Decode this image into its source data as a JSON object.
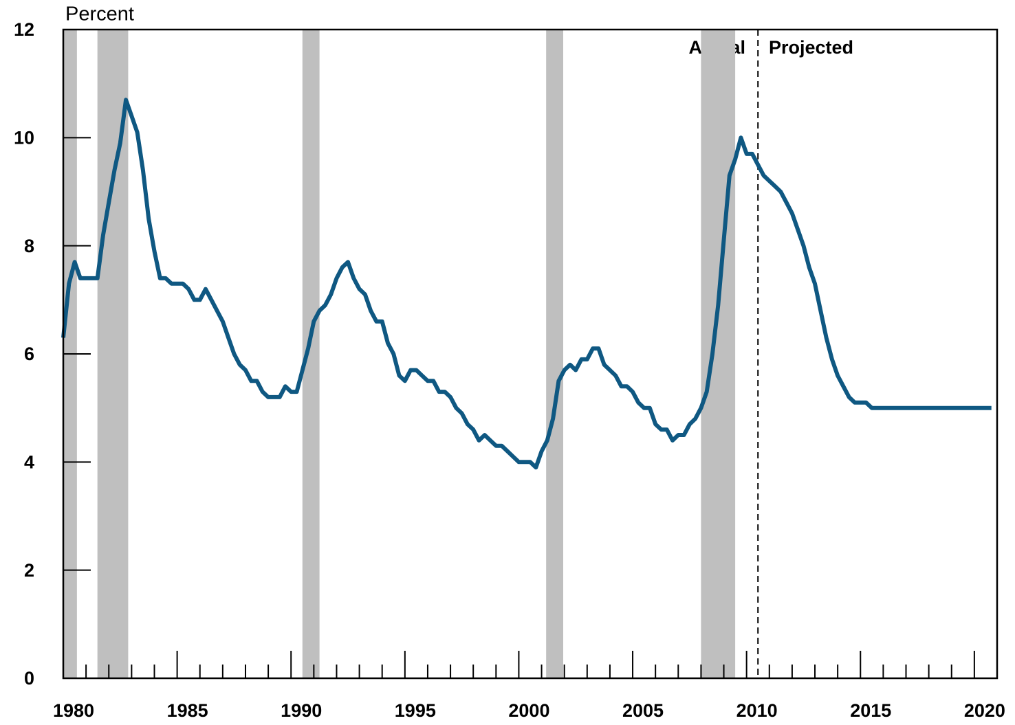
{
  "chart_data": {
    "type": "line",
    "y_axis_label": "Percent",
    "annotations": [
      "Actual",
      "Projected"
    ],
    "divider_x": 2010.5,
    "shaded_periods": [
      [
        1980,
        1980.6
      ],
      [
        1981.5,
        1982.85
      ],
      [
        1990.5,
        1991.25
      ],
      [
        2001.2,
        2001.95
      ],
      [
        2008,
        2009.5
      ]
    ],
    "shade_color": "#bfbfbf",
    "xlim": [
      1980,
      2021
    ],
    "xticks": [
      1980,
      1985,
      1990,
      1995,
      2000,
      2005,
      2010,
      2015,
      2020
    ],
    "xminorticks": [
      1981,
      1982,
      1983,
      1984,
      1986,
      1987,
      1988,
      1989,
      1991,
      1992,
      1993,
      1994,
      1996,
      1997,
      1998,
      1999,
      2001,
      2002,
      2003,
      2004,
      2006,
      2007,
      2008,
      2009,
      2011,
      2012,
      2013,
      2014,
      2016,
      2017,
      2018,
      2019
    ],
    "ylim": [
      0,
      12
    ],
    "yticks": [
      0,
      2,
      4,
      6,
      8,
      10,
      12
    ],
    "x": [
      1980,
      1980.25,
      1980.5,
      1980.75,
      1981,
      1981.25,
      1981.5,
      1981.75,
      1982,
      1982.25,
      1982.5,
      1982.75,
      1983,
      1983.25,
      1983.5,
      1983.75,
      1984,
      1984.25,
      1984.5,
      1984.75,
      1985,
      1985.25,
      1985.5,
      1985.75,
      1986,
      1986.25,
      1986.5,
      1986.75,
      1987,
      1987.25,
      1987.5,
      1987.75,
      1988,
      1988.25,
      1988.5,
      1988.75,
      1989,
      1989.25,
      1989.5,
      1989.75,
      1990,
      1990.25,
      1990.5,
      1990.75,
      1991,
      1991.25,
      1991.5,
      1991.75,
      1992,
      1992.25,
      1992.5,
      1992.75,
      1993,
      1993.25,
      1993.5,
      1993.75,
      1994,
      1994.25,
      1994.5,
      1994.75,
      1995,
      1995.25,
      1995.5,
      1995.75,
      1996,
      1996.25,
      1996.5,
      1996.75,
      1997,
      1997.25,
      1997.5,
      1997.75,
      1998,
      1998.25,
      1998.5,
      1998.75,
      1999,
      1999.25,
      1999.5,
      1999.75,
      2000,
      2000.25,
      2000.5,
      2000.75,
      2001,
      2001.25,
      2001.5,
      2001.75,
      2002,
      2002.25,
      2002.5,
      2002.75,
      2003,
      2003.25,
      2003.5,
      2003.75,
      2004,
      2004.25,
      2004.5,
      2004.75,
      2005,
      2005.25,
      2005.5,
      2005.75,
      2006,
      2006.25,
      2006.5,
      2006.75,
      2007,
      2007.25,
      2007.5,
      2007.75,
      2008,
      2008.25,
      2008.5,
      2008.75,
      2009,
      2009.25,
      2009.5,
      2009.75,
      2010,
      2010.25,
      2010.5,
      2010.75,
      2011,
      2011.25,
      2011.5,
      2011.75,
      2012,
      2012.25,
      2012.5,
      2012.75,
      2013,
      2013.25,
      2013.5,
      2013.75,
      2014,
      2014.25,
      2014.5,
      2014.75,
      2015,
      2015.25,
      2015.5,
      2015.75,
      2016,
      2016.25,
      2016.5,
      2016.75,
      2017,
      2017.25,
      2017.5,
      2017.75,
      2018,
      2018.25,
      2018.5,
      2018.75,
      2019,
      2019.25,
      2019.5,
      2019.75,
      2020,
      2020.25,
      2020.5,
      2020.75
    ],
    "series": [
      {
        "color": "#0f5882",
        "values": [
          6.3,
          7.3,
          7.7,
          7.4,
          7.4,
          7.4,
          7.4,
          8.2,
          8.8,
          9.4,
          9.9,
          10.7,
          10.4,
          10.1,
          9.4,
          8.5,
          7.9,
          7.4,
          7.4,
          7.3,
          7.3,
          7.3,
          7.2,
          7.0,
          7.0,
          7.2,
          7.0,
          6.8,
          6.6,
          6.3,
          6.0,
          5.8,
          5.7,
          5.5,
          5.5,
          5.3,
          5.2,
          5.2,
          5.2,
          5.4,
          5.3,
          5.3,
          5.7,
          6.1,
          6.6,
          6.8,
          6.9,
          7.1,
          7.4,
          7.6,
          7.7,
          7.4,
          7.2,
          7.1,
          6.8,
          6.6,
          6.6,
          6.2,
          6.0,
          5.6,
          5.5,
          5.7,
          5.7,
          5.6,
          5.5,
          5.5,
          5.3,
          5.3,
          5.2,
          5.0,
          4.9,
          4.7,
          4.6,
          4.4,
          4.5,
          4.4,
          4.3,
          4.3,
          4.2,
          4.1,
          4.0,
          4.0,
          4.0,
          3.9,
          4.2,
          4.4,
          4.8,
          5.5,
          5.7,
          5.8,
          5.7,
          5.9,
          5.9,
          6.1,
          6.1,
          5.8,
          5.7,
          5.6,
          5.4,
          5.4,
          5.3,
          5.1,
          5.0,
          5.0,
          4.7,
          4.6,
          4.6,
          4.4,
          4.5,
          4.5,
          4.7,
          4.8,
          5.0,
          5.3,
          6.0,
          6.9,
          8.1,
          9.3,
          9.6,
          10.0,
          9.7,
          9.7,
          9.5,
          9.3,
          9.2,
          9.1,
          9.0,
          8.8,
          8.6,
          8.3,
          8.0,
          7.6,
          7.3,
          6.8,
          6.3,
          5.9,
          5.6,
          5.4,
          5.2,
          5.1,
          5.1,
          5.1,
          5.0,
          5.0,
          5.0,
          5.0,
          5.0,
          5.0,
          5.0,
          5.0,
          5.0,
          5.0,
          5.0,
          5.0,
          5.0,
          5.0,
          5.0,
          5.0,
          5.0,
          5.0,
          5.0,
          5.0,
          5.0,
          5.0
        ]
      }
    ]
  }
}
